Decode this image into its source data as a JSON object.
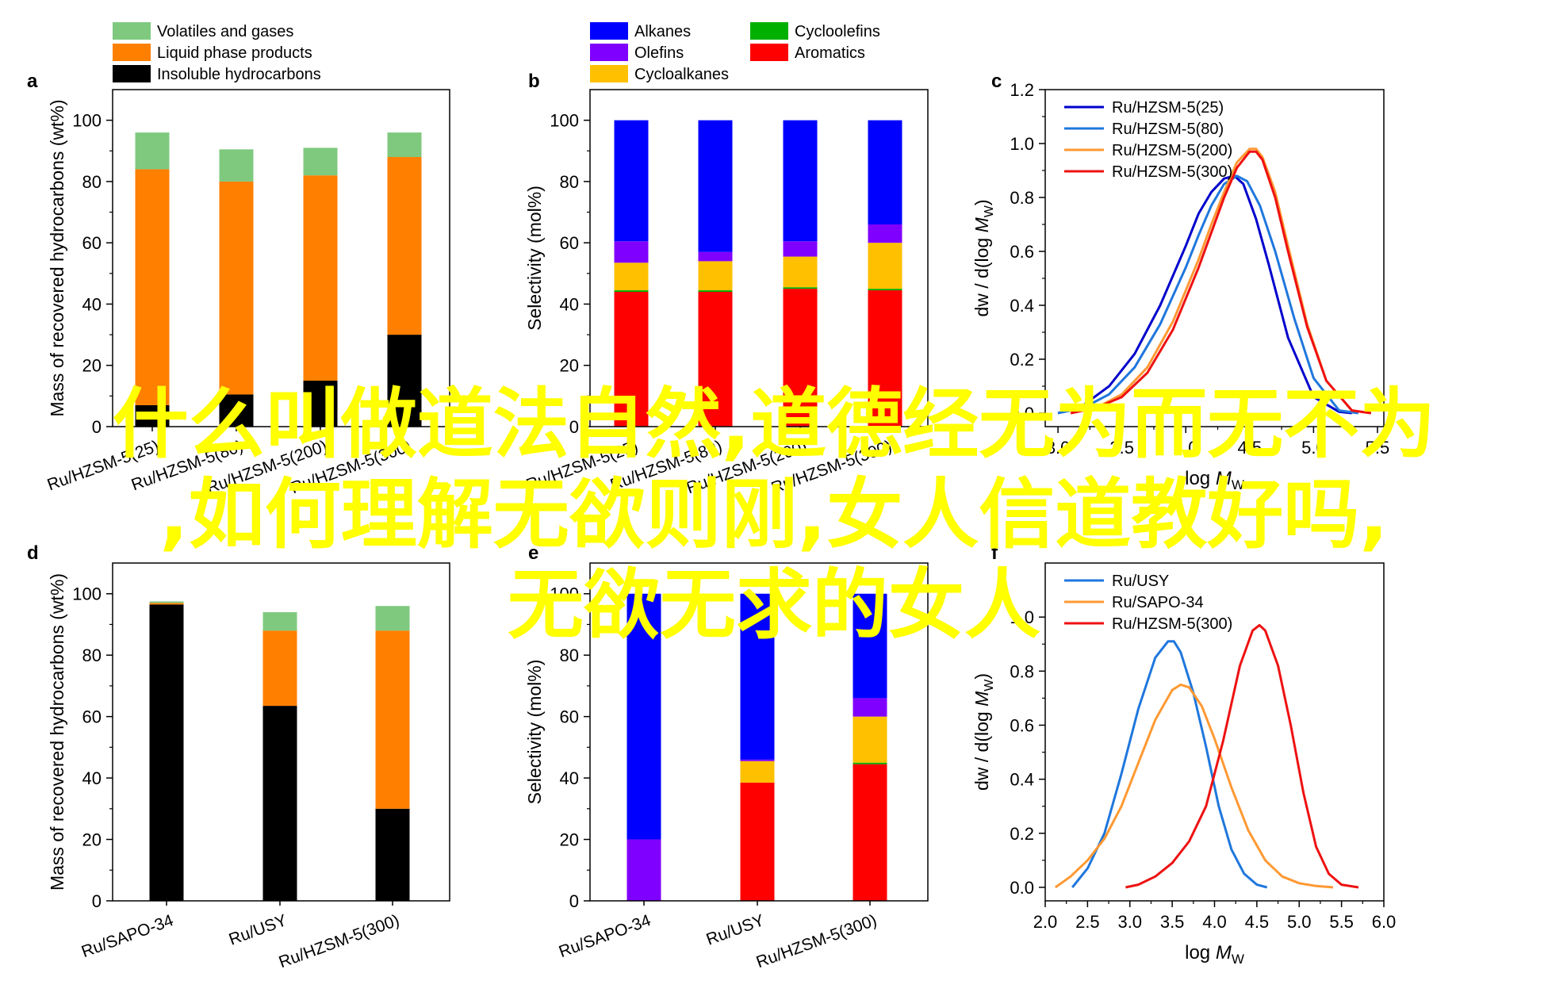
{
  "colors": {
    "volatiles": "#7fc97f",
    "liquid": "#ff7f00",
    "insoluble": "#000000",
    "alkanes": "#0000ff",
    "olefins": "#8000ff",
    "cycloalkanes": "#ffc000",
    "cycloolefins": "#00b000",
    "aromatics": "#ff0000",
    "hzsm25": "#0000cc",
    "hzsm80": "#1f77dd",
    "hzsm200": "#ff9933",
    "hzsm300": "#ee1111",
    "usy": "#1f77dd",
    "sapo": "#ff9933",
    "overlay_text": "#ffff00"
  },
  "overlay": {
    "line1": "什么叫做道法自然,道德经无为而无不为",
    "line2": ",如何理解无欲则刚,女人信道教好吗,",
    "line3": "无欲无求的女人"
  },
  "chart_data": [
    {
      "panel": "a",
      "type": "bar",
      "stacked": true,
      "categories": [
        "Ru/HZSM-5(25)",
        "Ru/HZSM-5(80)",
        "Ru/HZSM-5(200)",
        "Ru/HZSM-5(300)"
      ],
      "series": [
        {
          "name": "Insoluble hydrocarbons",
          "color_key": "insoluble",
          "values": [
            7,
            10.5,
            15,
            30
          ]
        },
        {
          "name": "Liquid phase products",
          "color_key": "liquid",
          "values": [
            77,
            69.5,
            67,
            58
          ]
        },
        {
          "name": "Volatiles and gases",
          "color_key": "volatiles",
          "values": [
            12,
            10.5,
            9,
            8
          ]
        }
      ],
      "legend": [
        "Volatiles and gases",
        "Liquid phase products",
        "Insoluble hydrocarbons"
      ],
      "legend_position": "top",
      "ylabel": "Mass of recovered hydrocarbons (wt%)",
      "ylim": [
        0,
        110
      ],
      "yticks": [
        0,
        20,
        40,
        60,
        80,
        100
      ]
    },
    {
      "panel": "b",
      "type": "bar",
      "stacked": true,
      "categories": [
        "Ru/HZSM-5(25)",
        "Ru/HZSM-5(80)",
        "Ru/HZSM-5(200)",
        "Ru/HZSM-5(300)"
      ],
      "series": [
        {
          "name": "Aromatics",
          "color_key": "aromatics",
          "values": [
            44,
            44,
            45,
            44.5
          ]
        },
        {
          "name": "Cycloolefins",
          "color_key": "cycloolefins",
          "values": [
            0.5,
            0.5,
            0.5,
            0.5
          ]
        },
        {
          "name": "Cycloalkanes",
          "color_key": "cycloalkanes",
          "values": [
            9,
            9.5,
            10,
            15
          ]
        },
        {
          "name": "Olefins",
          "color_key": "olefins",
          "values": [
            7,
            3,
            5,
            6
          ]
        },
        {
          "name": "Alkanes",
          "color_key": "alkanes",
          "values": [
            39.5,
            43,
            39.5,
            34
          ]
        }
      ],
      "legend": [
        "Alkanes",
        "Olefins",
        "Cycloalkanes",
        "Cycloolefins",
        "Aromatics"
      ],
      "legend_position": "top",
      "ylabel": "Selectivity (mol%)",
      "ylim": [
        0,
        110
      ],
      "yticks": [
        0,
        20,
        40,
        60,
        80,
        100
      ]
    },
    {
      "panel": "c",
      "type": "line",
      "xlabel_main": "log ",
      "xlabel_italic": "M",
      "xlabel_sub": "W",
      "ylabel": "dw / d(log Mw)",
      "ylim": [
        -0.05,
        1.2
      ],
      "yticks": [
        0.0,
        0.2,
        0.4,
        0.6,
        0.8,
        1.0,
        1.2
      ],
      "xlim": [
        2.9,
        5.55
      ],
      "xticks": [
        3.0,
        3.5,
        4.0,
        4.5,
        5.0,
        5.5
      ],
      "series": [
        {
          "name": "Ru/HZSM-5(25)",
          "color_key": "hzsm25",
          "x": [
            3.0,
            3.2,
            3.4,
            3.6,
            3.8,
            4.0,
            4.1,
            4.2,
            4.3,
            4.38,
            4.45,
            4.55,
            4.65,
            4.8,
            5.0,
            5.2,
            5.3
          ],
          "y": [
            0.0,
            0.03,
            0.1,
            0.22,
            0.4,
            0.62,
            0.74,
            0.82,
            0.87,
            0.88,
            0.85,
            0.72,
            0.55,
            0.28,
            0.06,
            0.005,
            0.0
          ]
        },
        {
          "name": "Ru/HZSM-5(80)",
          "color_key": "hzsm80",
          "x": [
            3.0,
            3.2,
            3.4,
            3.6,
            3.8,
            4.0,
            4.1,
            4.2,
            4.3,
            4.4,
            4.48,
            4.58,
            4.7,
            4.85,
            5.0,
            5.2,
            5.35
          ],
          "y": [
            0.0,
            0.02,
            0.07,
            0.17,
            0.33,
            0.54,
            0.66,
            0.77,
            0.85,
            0.88,
            0.86,
            0.77,
            0.6,
            0.35,
            0.13,
            0.01,
            0.0
          ]
        },
        {
          "name": "Ru/HZSM-5(200)",
          "color_key": "hzsm200",
          "x": [
            3.1,
            3.3,
            3.5,
            3.7,
            3.9,
            4.1,
            4.2,
            4.3,
            4.4,
            4.5,
            4.55,
            4.6,
            4.7,
            4.8,
            4.95,
            5.1,
            5.3,
            5.45
          ],
          "y": [
            0.0,
            0.02,
            0.07,
            0.17,
            0.34,
            0.57,
            0.7,
            0.82,
            0.93,
            0.98,
            0.98,
            0.95,
            0.82,
            0.62,
            0.33,
            0.12,
            0.01,
            0.0
          ]
        },
        {
          "name": "Ru/HZSM-5(300)",
          "color_key": "hzsm300",
          "x": [
            3.1,
            3.3,
            3.5,
            3.7,
            3.9,
            4.1,
            4.2,
            4.3,
            4.4,
            4.5,
            4.55,
            4.6,
            4.7,
            4.8,
            4.95,
            5.1,
            5.3,
            5.45
          ],
          "y": [
            0.0,
            0.02,
            0.06,
            0.15,
            0.31,
            0.54,
            0.67,
            0.8,
            0.91,
            0.97,
            0.97,
            0.94,
            0.8,
            0.6,
            0.32,
            0.12,
            0.01,
            0.0
          ]
        }
      ],
      "legend_position": "top-left"
    },
    {
      "panel": "d",
      "type": "bar",
      "stacked": true,
      "categories": [
        "Ru/SAPO-34",
        "Ru/USY",
        "Ru/HZSM-5(300)"
      ],
      "series": [
        {
          "name": "Insoluble hydrocarbons",
          "color_key": "insoluble",
          "values": [
            96.5,
            63.5,
            30
          ]
        },
        {
          "name": "Liquid phase products",
          "color_key": "liquid",
          "values": [
            0.5,
            24.5,
            58
          ]
        },
        {
          "name": "Volatiles and gases",
          "color_key": "volatiles",
          "values": [
            0.5,
            6,
            8
          ]
        }
      ],
      "ylabel": "Mass of recovered hydrocarbons (wt%)",
      "ylim": [
        0,
        110
      ],
      "yticks": [
        0,
        20,
        40,
        60,
        80,
        100
      ]
    },
    {
      "panel": "e",
      "type": "bar",
      "stacked": true,
      "categories": [
        "Ru/SAPO-34",
        "Ru/USY",
        "Ru/HZSM-5(300)"
      ],
      "series": [
        {
          "name": "Aromatics",
          "color_key": "aromatics",
          "values": [
            0,
            38.5,
            44.5
          ]
        },
        {
          "name": "Cycloolefins",
          "color_key": "cycloolefins",
          "values": [
            0,
            0,
            0.5
          ]
        },
        {
          "name": "Cycloalkanes",
          "color_key": "cycloalkanes",
          "values": [
            0,
            7,
            15
          ]
        },
        {
          "name": "Olefins",
          "color_key": "olefins",
          "values": [
            20,
            0.5,
            6
          ]
        },
        {
          "name": "Alkanes",
          "color_key": "alkanes",
          "values": [
            80,
            54,
            34
          ]
        }
      ],
      "ylabel": "Selectivity (mol%)",
      "ylim": [
        0,
        110
      ],
      "yticks": [
        0,
        20,
        40,
        60,
        80,
        100
      ]
    },
    {
      "panel": "f",
      "type": "line",
      "xlabel_main": "log ",
      "xlabel_italic": "M",
      "xlabel_sub": "W",
      "ylabel": "dw / d(log Mw)",
      "ylim": [
        -0.05,
        1.2
      ],
      "yticks": [
        0.0,
        0.2,
        0.4,
        0.6,
        0.8,
        1.0
      ],
      "xlim": [
        2.0,
        6.0
      ],
      "xticks": [
        2.0,
        2.5,
        3.0,
        3.5,
        4.0,
        4.5,
        5.0,
        5.5,
        6.0
      ],
      "series": [
        {
          "name": "Ru/USY",
          "color_key": "usy",
          "x": [
            2.32,
            2.5,
            2.7,
            2.9,
            3.1,
            3.3,
            3.45,
            3.52,
            3.6,
            3.75,
            3.9,
            4.05,
            4.2,
            4.35,
            4.5,
            4.62
          ],
          "y": [
            0.0,
            0.07,
            0.2,
            0.42,
            0.66,
            0.85,
            0.91,
            0.91,
            0.87,
            0.72,
            0.52,
            0.3,
            0.14,
            0.05,
            0.01,
            0.0
          ]
        },
        {
          "name": "Ru/SAPO-34",
          "color_key": "sapo",
          "x": [
            2.12,
            2.3,
            2.5,
            2.7,
            2.9,
            3.1,
            3.3,
            3.5,
            3.6,
            3.7,
            3.85,
            4.0,
            4.2,
            4.4,
            4.6,
            4.8,
            5.0,
            5.2,
            5.4
          ],
          "y": [
            0.0,
            0.04,
            0.1,
            0.18,
            0.3,
            0.46,
            0.62,
            0.73,
            0.75,
            0.74,
            0.67,
            0.55,
            0.37,
            0.21,
            0.1,
            0.04,
            0.015,
            0.005,
            0.0
          ]
        },
        {
          "name": "Ru/HZSM-5(300)",
          "color_key": "hzsm300",
          "x": [
            2.95,
            3.1,
            3.3,
            3.5,
            3.7,
            3.9,
            4.1,
            4.3,
            4.45,
            4.53,
            4.6,
            4.75,
            4.9,
            5.05,
            5.2,
            5.35,
            5.5,
            5.7
          ],
          "y": [
            0.0,
            0.01,
            0.04,
            0.09,
            0.17,
            0.3,
            0.54,
            0.82,
            0.95,
            0.97,
            0.95,
            0.82,
            0.6,
            0.35,
            0.15,
            0.05,
            0.01,
            0.0
          ]
        }
      ],
      "legend_position": "top-left"
    }
  ]
}
